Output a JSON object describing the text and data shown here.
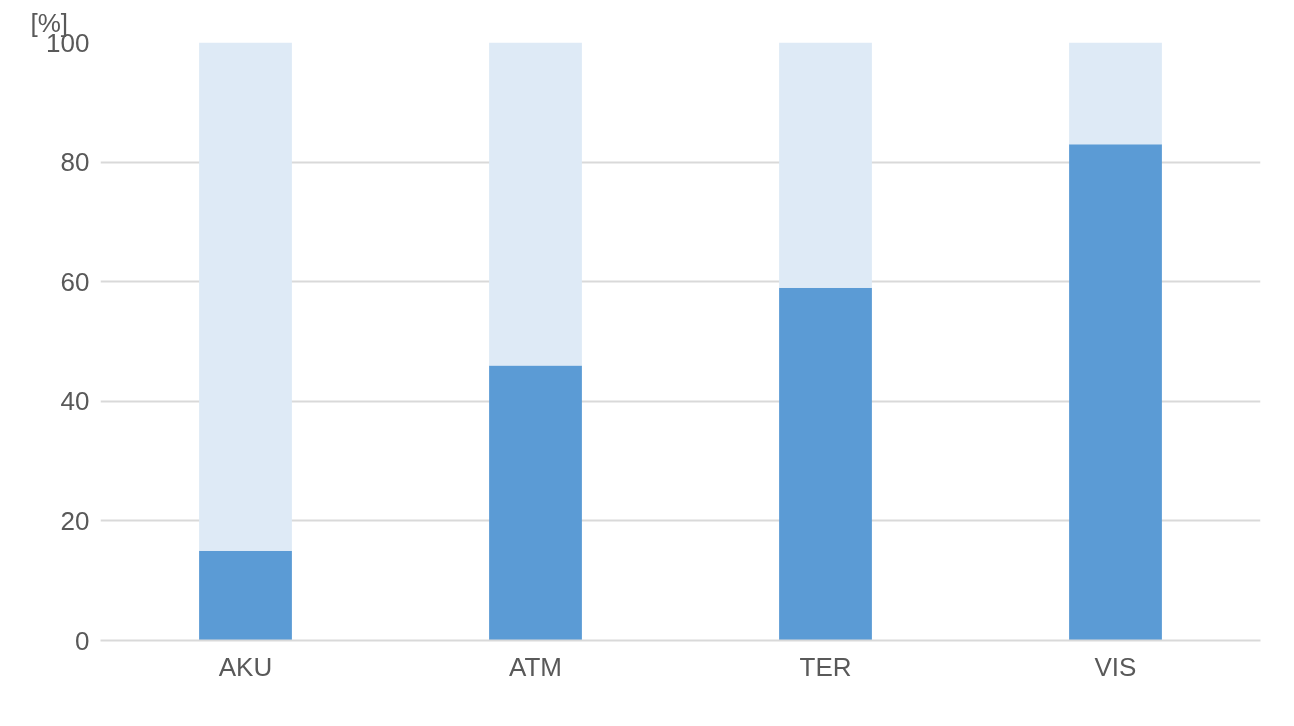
{
  "chart_data": {
    "type": "bar",
    "stacked": true,
    "ylabel": "[%]",
    "categories": [
      "AKU",
      "ATM",
      "TER",
      "VIS"
    ],
    "series": [
      {
        "color": "#5b9bd5",
        "values": [
          15,
          46,
          59,
          83
        ]
      },
      {
        "color": "#deeaf6",
        "values": [
          85,
          54,
          41,
          17
        ]
      }
    ],
    "ylim": [
      0,
      100
    ],
    "yticks": [
      0,
      20,
      40,
      60,
      80,
      100
    ],
    "grid": "y"
  }
}
